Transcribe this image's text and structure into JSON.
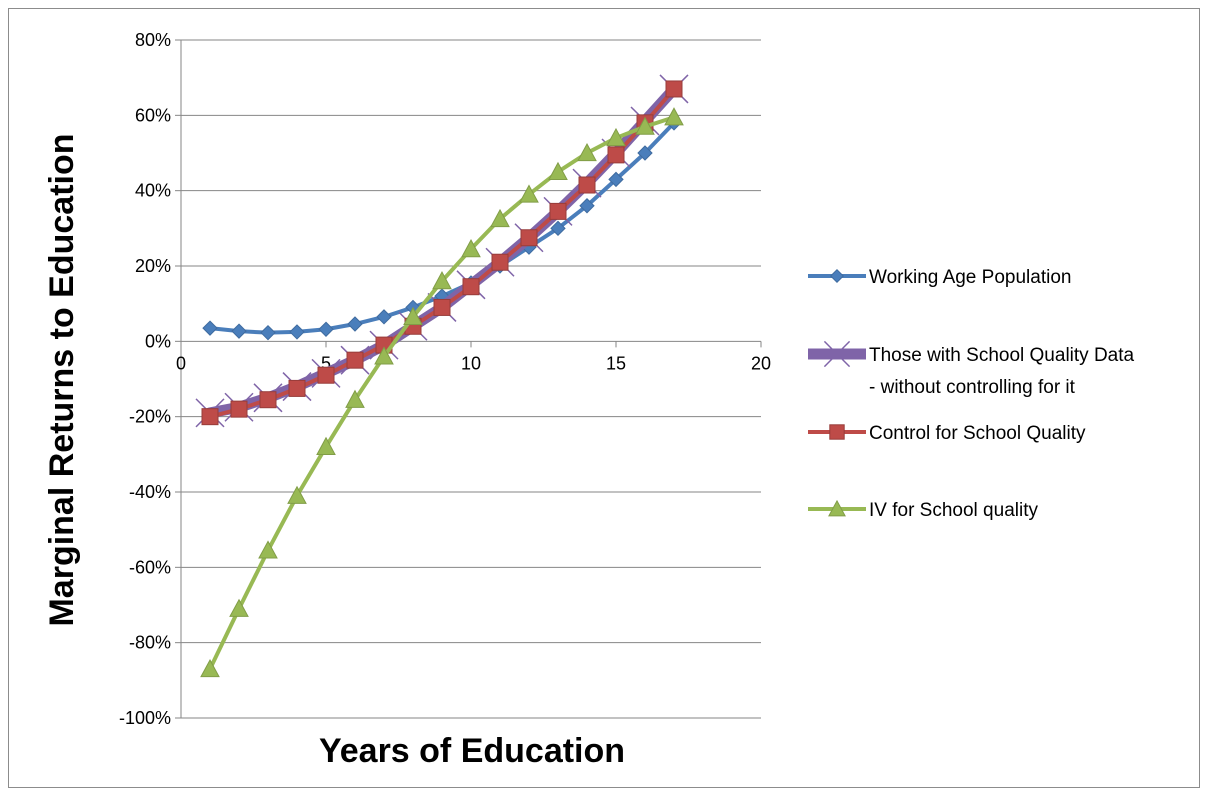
{
  "chart_data": {
    "type": "line",
    "title": "",
    "xlabel": "Years of Education",
    "ylabel": "Marginal Returns to Education",
    "xlim": [
      0,
      20
    ],
    "ylim": [
      -1.0,
      0.8
    ],
    "x_ticks": [
      0,
      5,
      10,
      15,
      20
    ],
    "x_tick_labels": [
      "0",
      "5",
      "10",
      "15",
      "20"
    ],
    "y_ticks": [
      0.8,
      0.6,
      0.4,
      0.2,
      0.0,
      -0.2,
      -0.4,
      -0.6,
      -0.8,
      -1.0
    ],
    "y_tick_labels": [
      "80%",
      "60%",
      "40%",
      "20%",
      "0%",
      "-20%",
      "-40%",
      "-60%",
      "-80%",
      "-100%"
    ],
    "grid": "horizontal",
    "legend_position": "right",
    "x": [
      1,
      2,
      3,
      4,
      5,
      6,
      7,
      8,
      9,
      10,
      11,
      12,
      13,
      14,
      15,
      16,
      17
    ],
    "series": [
      {
        "name": "Working Age Population",
        "label_lines": [
          "Working Age Population"
        ],
        "color": "#4a7ebb",
        "marker": "diamond",
        "values": [
          0.035,
          0.027,
          0.023,
          0.025,
          0.032,
          0.046,
          0.065,
          0.09,
          0.12,
          0.155,
          0.2,
          0.25,
          0.3,
          0.36,
          0.43,
          0.5,
          0.58
        ]
      },
      {
        "name": "Those with School Quality Data - without controlling for it",
        "label_lines": [
          "Those with School Quality Data",
          "- without controlling for it"
        ],
        "color": "#7f64a8",
        "marker": "x",
        "values": [
          -0.19,
          -0.175,
          -0.15,
          -0.12,
          -0.085,
          -0.05,
          -0.01,
          0.04,
          0.09,
          0.15,
          0.21,
          0.275,
          0.345,
          0.42,
          0.5,
          0.585,
          0.67
        ]
      },
      {
        "name": "Control for School Quality",
        "label_lines": [
          "Control for School Quality"
        ],
        "color": "#be4b48",
        "marker": "square",
        "values": [
          -0.2,
          -0.18,
          -0.155,
          -0.125,
          -0.09,
          -0.05,
          -0.01,
          0.04,
          0.09,
          0.145,
          0.21,
          0.275,
          0.345,
          0.415,
          0.495,
          0.58,
          0.67
        ]
      },
      {
        "name": "IV for School quality",
        "label_lines": [
          "IV for School quality"
        ],
        "color": "#98b954",
        "marker": "triangle",
        "values": [
          -0.87,
          -0.71,
          -0.555,
          -0.41,
          -0.28,
          -0.155,
          -0.04,
          0.065,
          0.16,
          0.245,
          0.325,
          0.39,
          0.45,
          0.5,
          0.54,
          0.57,
          0.595
        ]
      }
    ]
  }
}
